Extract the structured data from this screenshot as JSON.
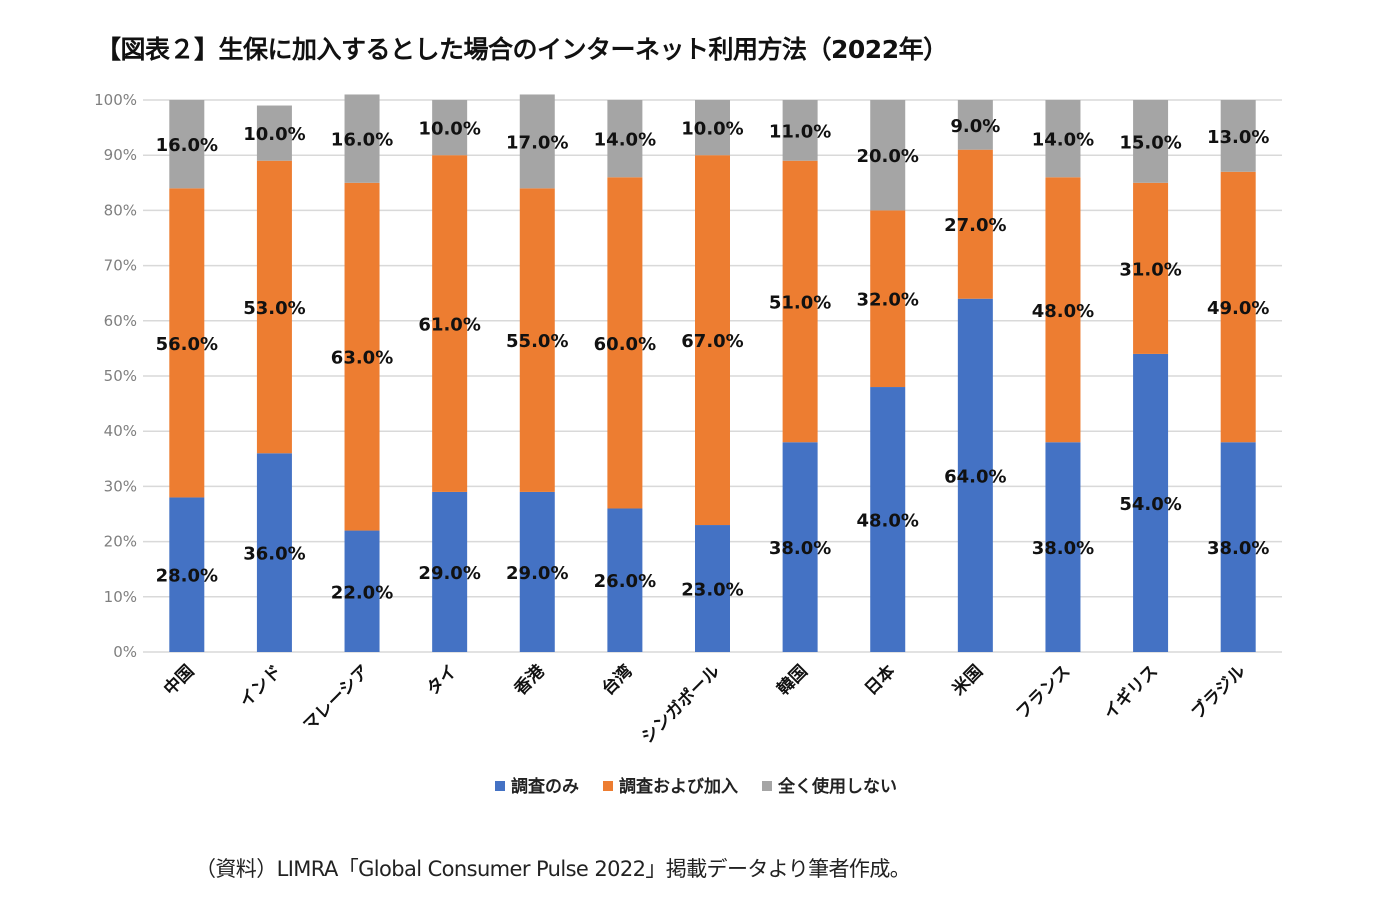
{
  "title": "【図表２】生保に加入するとした場合のインターネット利用方法（2022年）",
  "source_note": "（資料）LIMRA「Global Consumer Pulse 2022」掲載データより筆者作成。",
  "chart_data": {
    "type": "bar",
    "stacked": true,
    "percent_stacked": true,
    "title": "【図表２】生保に加入するとした場合のインターネット利用方法（2022年）",
    "xlabel": "",
    "ylabel": "",
    "ylim": [
      0,
      100
    ],
    "yticks": [
      "0%",
      "10%",
      "20%",
      "30%",
      "40%",
      "50%",
      "60%",
      "70%",
      "80%",
      "90%",
      "100%"
    ],
    "grid": true,
    "legend_position": "bottom",
    "categories": [
      "中国",
      "インド",
      "マレーシア",
      "タイ",
      "香港",
      "台湾",
      "シンガポール",
      "韓国",
      "日本",
      "米国",
      "フランス",
      "イギリス",
      "ブラジル"
    ],
    "series": [
      {
        "name": "調査のみ",
        "color": "#4472c4",
        "values": [
          28,
          36,
          22,
          29,
          29,
          26,
          23,
          38,
          48,
          64,
          38,
          54,
          38
        ]
      },
      {
        "name": "調査および加入",
        "color": "#ed7d31",
        "values": [
          56,
          53,
          63,
          61,
          55,
          60,
          67,
          51,
          32,
          27,
          48,
          31,
          49
        ]
      },
      {
        "name": "全く使用しない",
        "color": "#a5a5a5",
        "values": [
          16,
          10,
          16,
          10,
          17,
          14,
          10,
          11,
          20,
          9,
          14,
          15,
          13
        ]
      }
    ],
    "data_label_format": "0.0%"
  }
}
